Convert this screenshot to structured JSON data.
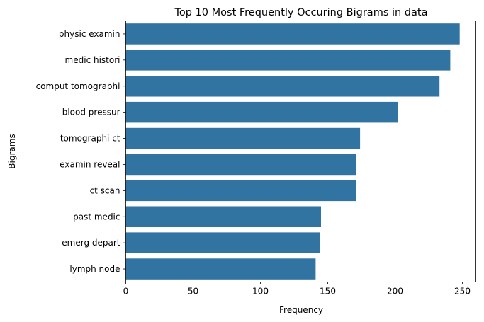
{
  "chart_data": {
    "type": "bar",
    "orientation": "horizontal",
    "title": "Top 10 Most Frequently Occuring Bigrams in data",
    "xlabel": "Frequency",
    "ylabel": "Bigrams",
    "categories": [
      "physic examin",
      "medic histori",
      "comput tomographi",
      "blood pressur",
      "tomographi ct",
      "examin reveal",
      "ct scan",
      "past medic",
      "emerg depart",
      "lymph node"
    ],
    "values": [
      248,
      241,
      233,
      202,
      174,
      171,
      171,
      145,
      144,
      141
    ],
    "xlim": [
      0,
      260
    ],
    "xticks": [
      0,
      50,
      100,
      150,
      200,
      250
    ],
    "grid": false,
    "legend": "none",
    "bar_color": "#3274a1"
  }
}
